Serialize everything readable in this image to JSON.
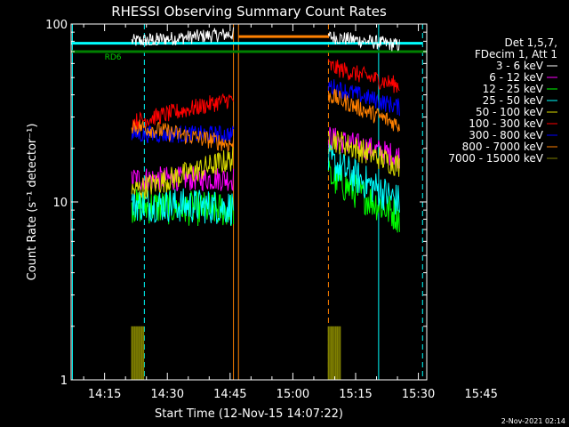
{
  "chart_data": {
    "type": "line",
    "title": "RHESSI Observing Summary Count Rates",
    "xlabel": "Start Time (12-Nov-15 14:07:22)",
    "ylabel": "Count Rate (s⁻¹ detector⁻¹)",
    "y_scale": "log",
    "ylim": [
      1,
      100
    ],
    "y_ticks": [
      {
        "value": 1,
        "label": "1"
      },
      {
        "value": 10,
        "label": "10"
      },
      {
        "value": 100,
        "label": "100"
      }
    ],
    "x_range_minutes": [
      0,
      85
    ],
    "x_ticks": [
      {
        "minute": 8,
        "label": "14:15"
      },
      {
        "minute": 23,
        "label": "14:30"
      },
      {
        "minute": 38,
        "label": "14:45"
      },
      {
        "minute": 53,
        "label": "15:00"
      },
      {
        "minute": 68,
        "label": "15:15"
      },
      {
        "minute": 83,
        "label": "15:30"
      },
      {
        "minute": 98,
        "label": "15:45"
      }
    ],
    "legend": {
      "position": "right",
      "header": [
        "Det 1,5,7,",
        "FDecim 1, Att 1"
      ],
      "entries": [
        {
          "label": "3 - 6 keV",
          "color": "#ffffff"
        },
        {
          "label": "6 - 12 keV",
          "color": "#ff00ff"
        },
        {
          "label": "12 - 25 keV",
          "color": "#00ff00"
        },
        {
          "label": "25 - 50 keV",
          "color": "#00ffff"
        },
        {
          "label": "50 - 100 keV",
          "color": "#dddd00"
        },
        {
          "label": "100 - 300 keV",
          "color": "#ff0000"
        },
        {
          "label": "300 - 800 keV",
          "color": "#0000ff"
        },
        {
          "label": "800 - 7000 keV",
          "color": "#ff8000"
        },
        {
          "label": "7000 - 15000 keV",
          "color": "#808000"
        }
      ]
    },
    "segments": [
      {
        "t_start": 14.5,
        "t_end": 38.8
      },
      {
        "t_start": 61.5,
        "t_end": 78.5
      }
    ],
    "series": [
      {
        "name": "3 - 6 keV",
        "color": "#ffffff",
        "seg1": [
          80,
          88
        ],
        "seg2": [
          85,
          76
        ],
        "noise": 0.04
      },
      {
        "name": "6 - 12 keV",
        "color": "#ff00ff",
        "seg1": [
          13.5,
          13.5
        ],
        "seg2": [
          23,
          18
        ],
        "noise": 0.07
      },
      {
        "name": "12 - 25 keV",
        "color": "#00ff00",
        "seg1": [
          9.5,
          9.0
        ],
        "seg2": [
          14,
          8.3
        ],
        "noise": 0.1
      },
      {
        "name": "25 - 50 keV",
        "color": "#00ffff",
        "seg1": [
          9.8,
          9.3
        ],
        "seg2": [
          17,
          10
        ],
        "noise": 0.1
      },
      {
        "name": "50 - 100 keV",
        "color": "#dddd00",
        "seg1": [
          11.5,
          17.5
        ],
        "seg2": [
          23,
          16
        ],
        "noise": 0.07
      },
      {
        "name": "100 - 300 keV",
        "color": "#ff0000",
        "seg1": [
          28,
          38
        ],
        "seg2": [
          58,
          45
        ],
        "noise": 0.05
      },
      {
        "name": "300 - 800 keV",
        "color": "#0000ff",
        "seg1": [
          24,
          24
        ],
        "seg2": [
          45,
          34
        ],
        "noise": 0.05
      },
      {
        "name": "800 - 7000 keV",
        "color": "#ff8000",
        "seg1": [
          27,
          21
        ],
        "seg2": [
          40,
          27
        ],
        "noise": 0.05
      },
      {
        "name": "7000 - 15000 keV",
        "color": "#808000",
        "seg1": [
          2,
          1
        ],
        "seg2": [
          2,
          1
        ],
        "noise": 0
      }
    ],
    "hlines": [
      {
        "value": 78,
        "t_start": 0,
        "t_end": 84,
        "color": "#00ffff"
      },
      {
        "value": 70,
        "t_start": 0,
        "t_end": 85,
        "color": "#008000"
      },
      {
        "value": 85,
        "t_start": 40,
        "t_end": 61.5,
        "color": "#ff8000"
      }
    ],
    "vlines": [
      {
        "t": 0.3,
        "color": "#00ffff",
        "style": "solid"
      },
      {
        "t": 17.5,
        "color": "#00ffff",
        "style": "dash"
      },
      {
        "t": 38.8,
        "color": "#ff8000",
        "style": "solid"
      },
      {
        "t": 40,
        "color": "#ff8000",
        "style": "solid"
      },
      {
        "t": 61.5,
        "color": "#ff8000",
        "style": "dash"
      },
      {
        "t": 73.5,
        "color": "#00ffff",
        "style": "solid"
      },
      {
        "t": 84,
        "color": "#00ffff",
        "style": "dash"
      }
    ],
    "annotations": [
      {
        "text": "RD6",
        "t": 19.0,
        "value": 76,
        "color": "#ffffff"
      },
      {
        "text": "RD6",
        "t": 10.0,
        "value": 63,
        "color": "#00d000"
      }
    ],
    "grid": false
  },
  "timestamp": "2-Nov-2021 02:14"
}
